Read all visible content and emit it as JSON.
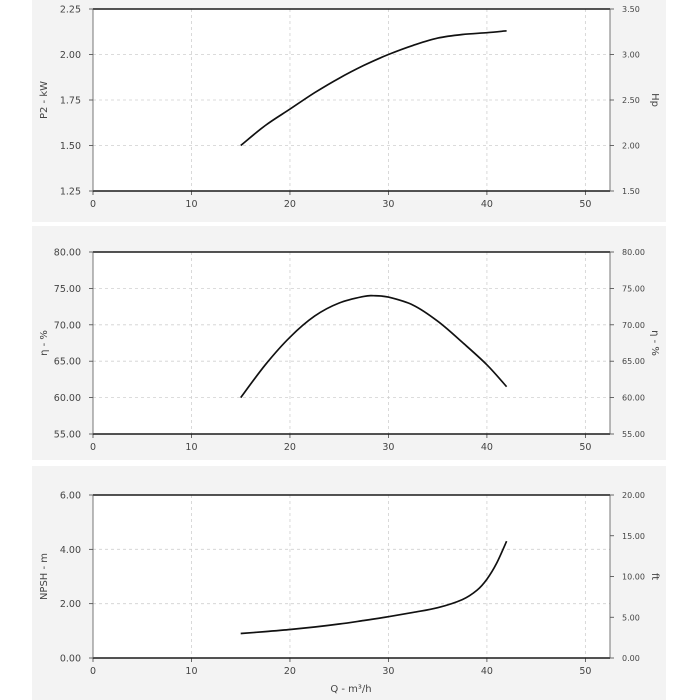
{
  "chart_data": [
    {
      "type": "line",
      "x_ticks": [
        "0",
        "10",
        "20",
        "30",
        "40",
        "50"
      ],
      "xlim": [
        0,
        52.5
      ],
      "ylabel": "P2 - kW",
      "ylim": [
        1.25,
        2.25
      ],
      "y_ticks": [
        "1.25",
        "1.50",
        "1.75",
        "2.00",
        "2.25"
      ],
      "y2label": "Hp",
      "y2_ticks": [
        "1.50",
        "2.00",
        "2.50",
        "3.00",
        "3.50"
      ],
      "series": [
        {
          "x": [
            15,
            17.5,
            20,
            22.5,
            25,
            27.5,
            30,
            32.5,
            35,
            37.5,
            40,
            42
          ],
          "y": [
            1.5,
            1.61,
            1.7,
            1.79,
            1.87,
            1.94,
            2.0,
            2.05,
            2.09,
            2.11,
            2.12,
            2.13
          ]
        }
      ]
    },
    {
      "type": "line",
      "x_ticks": [
        "0",
        "10",
        "20",
        "30",
        "40",
        "50"
      ],
      "xlim": [
        0,
        52.5
      ],
      "ylabel": "η - %",
      "ylim": [
        55,
        80
      ],
      "y_ticks": [
        "55.00",
        "60.00",
        "65.00",
        "70.00",
        "75.00",
        "80.00"
      ],
      "y2label": "η - %",
      "y2_ticks": [
        "55.00",
        "60.00",
        "65.00",
        "70.00",
        "75.00",
        "80.00"
      ],
      "series": [
        {
          "x": [
            15,
            17.5,
            20,
            22.5,
            25,
            27.5,
            28.5,
            30,
            32.5,
            35,
            37.5,
            40,
            42
          ],
          "y": [
            60.0,
            64.5,
            68.3,
            71.2,
            73.0,
            73.9,
            74.0,
            73.8,
            72.7,
            70.5,
            67.6,
            64.5,
            61.5
          ]
        }
      ]
    },
    {
      "type": "line",
      "x_ticks": [
        "0",
        "10",
        "20",
        "30",
        "40",
        "50"
      ],
      "xlim": [
        0,
        52.5
      ],
      "xlabel": "Q - m³/h",
      "ylabel": "NPSH - m",
      "ylim": [
        0,
        6
      ],
      "y_ticks": [
        "0.00",
        "2.00",
        "4.00",
        "6.00"
      ],
      "y2label": "ft",
      "y2_ticks": [
        "0.00",
        "5.00",
        "10.00",
        "15.00",
        "20.00"
      ],
      "series": [
        {
          "x": [
            15,
            17.5,
            20,
            22.5,
            25,
            27.5,
            30,
            32.5,
            35,
            37.5,
            39,
            40,
            41,
            42
          ],
          "y": [
            0.9,
            0.97,
            1.05,
            1.14,
            1.25,
            1.38,
            1.52,
            1.68,
            1.85,
            2.15,
            2.5,
            2.9,
            3.5,
            4.3
          ]
        }
      ]
    }
  ]
}
